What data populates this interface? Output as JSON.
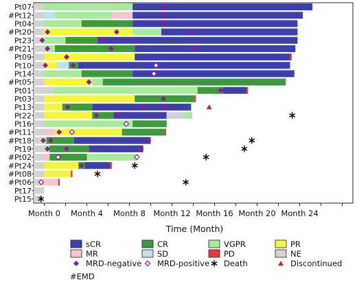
{
  "chart_data": {
    "type": "swimmer",
    "xlabel": "Time (Month)",
    "xlim": [
      -1,
      29
    ],
    "xticks": [
      {
        "value": 0,
        "label": "Month 0"
      },
      {
        "value": 4,
        "label": "Month 4"
      },
      {
        "value": 8,
        "label": "Month 8"
      },
      {
        "value": 12,
        "label": "Month 12"
      },
      {
        "value": 16,
        "label": "Month 16"
      },
      {
        "value": 20,
        "label": "Month 20"
      },
      {
        "value": 24,
        "label": "Month 24"
      }
    ],
    "colors": {
      "sCR": "#3f3fa8",
      "CR": "#3c9a3c",
      "VGPR": "#a8ea9e",
      "PR": "#f5f53a",
      "MR": "#f5c6cf",
      "SD": "#bde3ef",
      "PD": "#e8393a",
      "NE": "#d3d3d3",
      "MRD-negative": "#8b1f8b",
      "MRD-positive": "#8b1f8b",
      "Death": "#000000",
      "Discontinued": "#c42a2a"
    },
    "patients": [
      {
        "id": "Pt07",
        "segments": [
          [
            "NE",
            -1,
            0
          ],
          [
            "VGPR",
            0,
            8.3
          ],
          [
            "sCR",
            8.3,
            25.2
          ]
        ],
        "mrd_neg": [
          11.3
        ],
        "mrd_pos": [],
        "death": null,
        "discontinued": null
      },
      {
        "id": "#Pt12",
        "segments": [
          [
            "NE",
            -1,
            0
          ],
          [
            "SD",
            0,
            1
          ],
          [
            "VGPR",
            1,
            6.3
          ],
          [
            "MR",
            6.3,
            8.3
          ],
          [
            "sCR",
            8.3,
            24.3
          ]
        ],
        "mrd_neg": [
          11.3
        ],
        "mrd_pos": [],
        "death": null,
        "discontinued": null
      },
      {
        "id": "Pt04",
        "segments": [
          [
            "NE",
            -1,
            0
          ],
          [
            "VGPR",
            0,
            3.5
          ],
          [
            "CR",
            3.5,
            8.3
          ],
          [
            "sCR",
            8.3,
            23.8
          ]
        ],
        "mrd_neg": [
          11.3
        ],
        "mrd_pos": [],
        "death": null,
        "discontinued": null
      },
      {
        "id": "#Pt20",
        "segments": [
          [
            "NE",
            -1,
            0
          ],
          [
            "PR",
            0,
            8.3
          ],
          [
            "VGPR",
            8.3,
            11
          ],
          [
            "sCR",
            11,
            23.8
          ]
        ],
        "mrd_neg": [
          0.3,
          6.8,
          13.8
        ],
        "mrd_pos": [],
        "death": null,
        "discontinued": null
      },
      {
        "id": "Pt23",
        "segments": [
          [
            "NE",
            -1,
            0
          ],
          [
            "VGPR",
            0,
            2
          ],
          [
            "CR",
            2,
            5
          ],
          [
            "sCR",
            5,
            23.8
          ]
        ],
        "mrd_neg": [
          -0.2,
          5.5
        ],
        "mrd_pos": [],
        "death": null,
        "discontinued": null
      },
      {
        "id": "#Pt21",
        "segments": [
          [
            "NE",
            -1,
            0
          ],
          [
            "VGPR",
            0,
            1
          ],
          [
            "CR",
            1,
            8.5
          ],
          [
            "sCR",
            8.5,
            23.6
          ]
        ],
        "mrd_neg": [
          0.3,
          6.3,
          14.2
        ],
        "mrd_pos": [],
        "death": null,
        "discontinued": null
      },
      {
        "id": "Pt09",
        "segments": [
          [
            "NE",
            -1,
            0
          ],
          [
            "PR",
            0,
            8.5
          ],
          [
            "sCR",
            8.5,
            23.1
          ],
          [
            "PD",
            23.1,
            23.25
          ]
        ],
        "mrd_neg": [
          2.1
        ],
        "mrd_pos": [],
        "death": null,
        "discontinued": null
      },
      {
        "id": "Pt10",
        "segments": [
          [
            "NE",
            -1,
            0
          ],
          [
            "PR",
            0,
            1.2
          ],
          [
            "SD",
            1.2,
            2.3
          ],
          [
            "CR",
            2.3,
            3.2
          ],
          [
            "sCR",
            3.2,
            23.1
          ]
        ],
        "mrd_neg": [
          0.1,
          2.7
        ],
        "mrd_pos": [
          10.5
        ],
        "death": null,
        "discontinued": null
      },
      {
        "id": "Pt14",
        "segments": [
          [
            "NE",
            -1,
            0
          ],
          [
            "VGPR",
            0,
            3.5
          ],
          [
            "CR",
            3.5,
            8.3
          ],
          [
            "sCR",
            8.3,
            23.5
          ]
        ],
        "mrd_neg": [],
        "mrd_pos": [
          10.3
        ],
        "death": null,
        "discontinued": null
      },
      {
        "id": "#Pt05",
        "segments": [
          [
            "NE",
            -1,
            0
          ],
          [
            "PR",
            0,
            4.5
          ],
          [
            "VGPR",
            4.5,
            5.5
          ],
          [
            "CR",
            5.5,
            22.7
          ]
        ],
        "mrd_neg": [
          4.2
        ],
        "mrd_pos": [],
        "death": null,
        "discontinued": null
      },
      {
        "id": "Pt01",
        "segments": [
          [
            "NE",
            -1,
            0.8
          ],
          [
            "VGPR",
            0.8,
            14.4
          ],
          [
            "CR",
            14.4,
            16.8
          ],
          [
            "sCR",
            16.8,
            19
          ],
          [
            "PD",
            19,
            19.15
          ]
        ],
        "mrd_neg": [
          16.6
        ],
        "mrd_pos": [],
        "death": null,
        "discontinued": null
      },
      {
        "id": "Pt03",
        "segments": [
          [
            "NE",
            -1,
            0
          ],
          [
            "PR",
            0,
            8.5
          ],
          [
            "CR",
            8.5,
            14.1
          ],
          [
            "PD",
            14.1,
            14.25
          ]
        ],
        "mrd_neg": [
          11.2
        ],
        "mrd_pos": [],
        "death": null,
        "discontinued": null
      },
      {
        "id": "Pt13",
        "segments": [
          [
            "NE",
            -1,
            0
          ],
          [
            "PR",
            0,
            1.7
          ],
          [
            "CR",
            1.7,
            4.5
          ],
          [
            "sCR",
            4.5,
            13.8
          ]
        ],
        "mrd_neg": [
          2.2,
          9.3,
          11.3
        ],
        "mrd_pos": [],
        "death": null,
        "discontinued": 15.5
      },
      {
        "id": "Pt22",
        "segments": [
          [
            "NE",
            -1,
            0
          ],
          [
            "PR",
            0,
            4.5
          ],
          [
            "CR",
            4.5,
            6.5
          ],
          [
            "sCR",
            6.5,
            11.5
          ],
          [
            "NE",
            11.5,
            13.2
          ],
          [
            "VGPR",
            13.2,
            13.9
          ]
        ],
        "mrd_neg": [
          4.9,
          6.8
        ],
        "mrd_pos": [],
        "death": 23.3,
        "discontinued": null
      },
      {
        "id": "Pt16",
        "segments": [
          [
            "NE",
            -1,
            0
          ],
          [
            "VGPR",
            0,
            8.3
          ],
          [
            "CR",
            8.3,
            11.5
          ]
        ],
        "mrd_neg": [],
        "mrd_pos": [
          7.7
        ],
        "death": null,
        "discontinued": null
      },
      {
        "id": "#Pt11",
        "segments": [
          [
            "NE",
            -1,
            0
          ],
          [
            "MR",
            0,
            1
          ],
          [
            "PR",
            1,
            7.3
          ],
          [
            "CR",
            7.3,
            11.3
          ],
          [
            "PD",
            11.3,
            11.45
          ]
        ],
        "mrd_neg": [
          1.4
        ],
        "mrd_pos": [
          2.6
        ],
        "death": null,
        "discontinued": null
      },
      {
        "id": "#Pt18",
        "segments": [
          [
            "NE",
            -1,
            0
          ],
          [
            "VGPR",
            0,
            0.2
          ],
          [
            "CR",
            0.2,
            2.8
          ],
          [
            "sCR",
            2.8,
            10
          ]
        ],
        "mrd_neg": [
          -0.1,
          0.6,
          9.8
        ],
        "mrd_pos": [],
        "death": 19.5,
        "discontinued": null
      },
      {
        "id": "Pt19",
        "segments": [
          [
            "NE",
            -1,
            0
          ],
          [
            "VGPR",
            0,
            0.5
          ],
          [
            "CR",
            0.5,
            4.2
          ],
          [
            "sCR",
            4.2,
            9.3
          ]
        ],
        "mrd_neg": [
          0.3,
          2.1,
          9.1
        ],
        "mrd_pos": [],
        "death": 18.8,
        "discontinued": null
      },
      {
        "id": "#Pt02",
        "segments": [
          [
            "NE",
            -1,
            0
          ],
          [
            "MR",
            0,
            0.5
          ],
          [
            "CR",
            0.5,
            4
          ],
          [
            "VGPR",
            4,
            8.8
          ]
        ],
        "mrd_neg": [],
        "mrd_pos": [
          1.3,
          8.7
        ],
        "death": 15.2,
        "discontinued": null
      },
      {
        "id": "#Pt24",
        "segments": [
          [
            "NE",
            -1,
            0
          ],
          [
            "PR",
            0,
            3.2
          ],
          [
            "CR",
            3.2,
            3.8
          ],
          [
            "sCR",
            3.8,
            6.2
          ],
          [
            "PD",
            6.2,
            6.35
          ]
        ],
        "mrd_neg": [
          3.5
        ],
        "mrd_pos": [],
        "death": 8.5,
        "discontinued": null
      },
      {
        "id": "#Pt08",
        "segments": [
          [
            "NE",
            -1,
            0
          ],
          [
            "PR",
            0,
            2.5
          ],
          [
            "PD",
            2.5,
            2.65
          ]
        ],
        "mrd_neg": [],
        "mrd_pos": [],
        "death": 5,
        "discontinued": null
      },
      {
        "id": "#Pt06",
        "segments": [
          [
            "NE",
            -1,
            0
          ],
          [
            "MR",
            0,
            1.3
          ],
          [
            "PD",
            1.3,
            1.45
          ]
        ],
        "mrd_neg": [],
        "mrd_pos": [
          -0.3
        ],
        "death": 13.3,
        "discontinued": null
      },
      {
        "id": "Pt17",
        "segments": [
          [
            "NE",
            -1,
            0
          ]
        ],
        "mrd_neg": [],
        "mrd_pos": [],
        "death": null,
        "discontinued": null
      },
      {
        "id": "Pt15",
        "segments": [
          [
            "NE",
            -1,
            -0.2
          ]
        ],
        "mrd_neg": [],
        "mrd_pos": [],
        "death": -0.3,
        "discontinued": null
      }
    ],
    "legend": {
      "placement": "bottom",
      "rows": [
        [
          {
            "label": "sCR",
            "kind": "swatch",
            "key": "sCR"
          },
          {
            "label": "CR",
            "kind": "swatch",
            "key": "CR"
          },
          {
            "label": "VGPR",
            "kind": "swatch",
            "key": "VGPR"
          },
          {
            "label": "PR",
            "kind": "swatch",
            "key": "PR"
          }
        ],
        [
          {
            "label": "MR",
            "kind": "swatch",
            "key": "MR"
          },
          {
            "label": "SD",
            "kind": "swatch",
            "key": "SD"
          },
          {
            "label": "PD",
            "kind": "swatch",
            "key": "PD"
          },
          {
            "label": "NE",
            "kind": "swatch",
            "key": "NE"
          }
        ],
        [
          {
            "label": "MRD-negative",
            "kind": "diamond-filled",
            "key": "MRD-negative"
          },
          {
            "label": "MRD-positive",
            "kind": "diamond-open",
            "key": "MRD-positive"
          },
          {
            "label": "Death",
            "kind": "star",
            "key": "Death"
          },
          {
            "label": "Discontinued",
            "kind": "triangle",
            "key": "Discontinued"
          }
        ]
      ]
    },
    "footnote": "#EMD",
    "grid": false
  }
}
